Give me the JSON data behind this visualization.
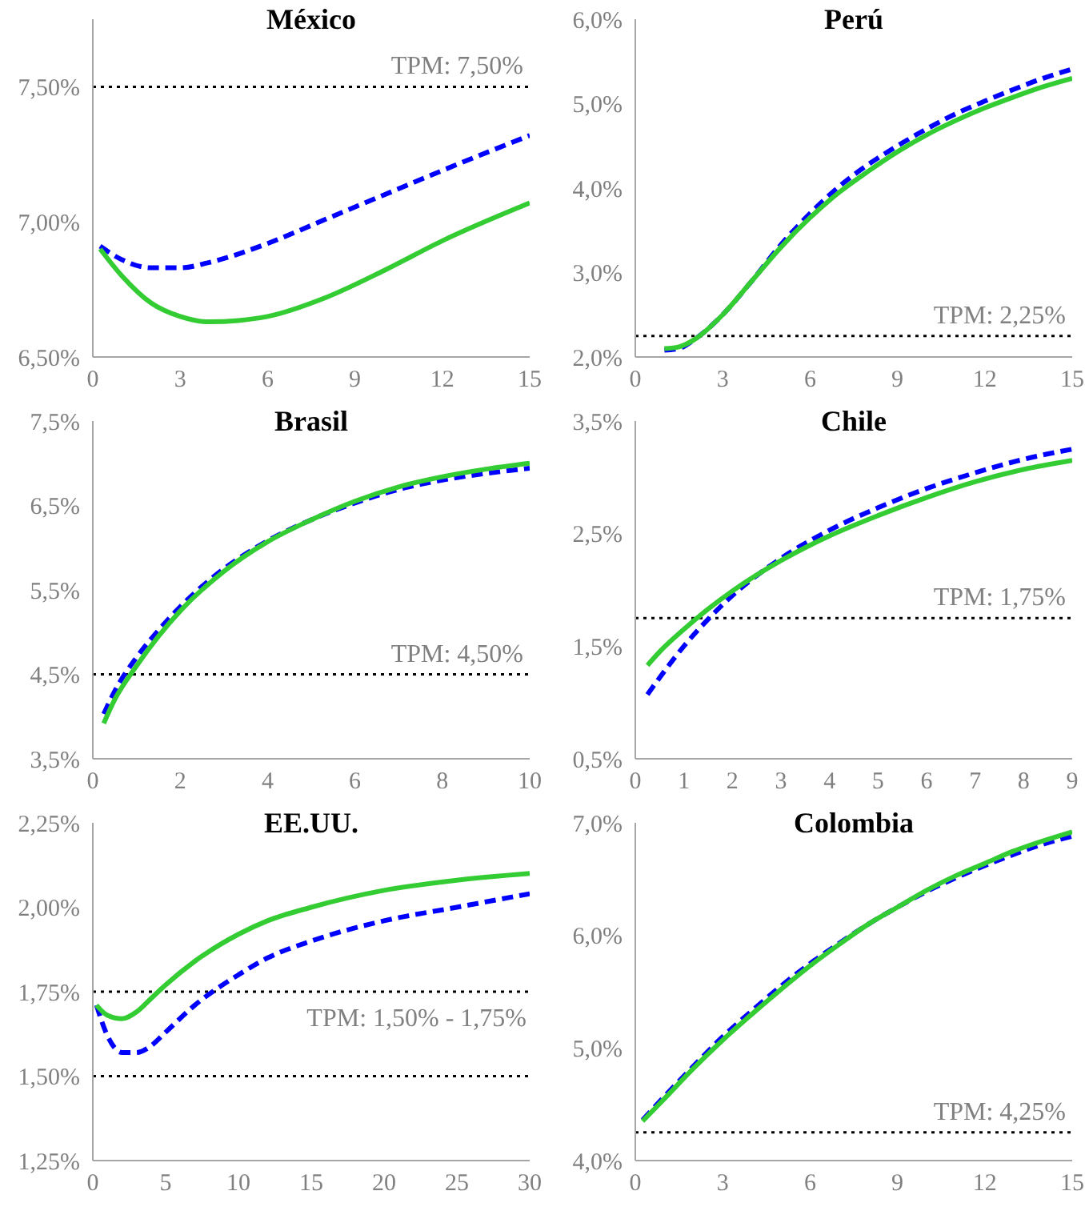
{
  "chart_data": [
    {
      "type": "line",
      "title": "México",
      "xlim": [
        0,
        15
      ],
      "xticks": [
        0,
        3,
        6,
        9,
        12,
        15
      ],
      "ylim": [
        6.5,
        7.75
      ],
      "yticks": [
        {
          "value": 6.5,
          "label": "6,50%"
        },
        {
          "value": 7,
          "label": "7,00%"
        },
        {
          "value": 7.5,
          "label": "7,50%"
        }
      ],
      "marker": "none",
      "ref_lines": [
        {
          "axis": "y",
          "value": 7.5,
          "label": "TPM: 7,50%",
          "color": "#000000",
          "line_style": "dotted"
        }
      ],
      "series": [
        {
          "color": "#0000ff",
          "line_style": "dashed",
          "x": [
            0.25,
            1,
            2,
            3,
            4,
            6,
            8,
            10,
            12,
            15
          ],
          "values": [
            6.91,
            6.86,
            6.83,
            6.83,
            6.85,
            6.92,
            7.01,
            7.1,
            7.19,
            7.32
          ]
        },
        {
          "color": "#33cc33",
          "line_style": "solid",
          "x": [
            0.25,
            1,
            2,
            3,
            4,
            5,
            6,
            8,
            10,
            12,
            15
          ],
          "values": [
            6.9,
            6.8,
            6.7,
            6.65,
            6.63,
            6.635,
            6.65,
            6.72,
            6.82,
            6.93,
            7.07
          ]
        }
      ]
    },
    {
      "type": "line",
      "title": "Perú",
      "xlim": [
        0,
        15
      ],
      "xticks": [
        0,
        3,
        6,
        9,
        12,
        15
      ],
      "ylim": [
        2,
        6
      ],
      "yticks": [
        {
          "value": 2,
          "label": "2,0%"
        },
        {
          "value": 3,
          "label": "3,0%"
        },
        {
          "value": 4,
          "label": "4,0%"
        },
        {
          "value": 5,
          "label": "5,0%"
        },
        {
          "value": 6,
          "label": "6,0%"
        }
      ],
      "marker": "none",
      "ref_lines": [
        {
          "axis": "y",
          "value": 2.25,
          "label": "TPM: 2,25%",
          "color": "#000000",
          "line_style": "dotted"
        }
      ],
      "series": [
        {
          "color": "#0000ff",
          "line_style": "dashed",
          "x": [
            1,
            1.5,
            2,
            3,
            4,
            5,
            6,
            7,
            8,
            9,
            10,
            11,
            12,
            13,
            14,
            15
          ],
          "values": [
            2.08,
            2.1,
            2.2,
            2.5,
            2.9,
            3.33,
            3.7,
            4.02,
            4.28,
            4.5,
            4.7,
            4.88,
            5.03,
            5.17,
            5.3,
            5.41
          ]
        },
        {
          "color": "#33cc33",
          "line_style": "solid",
          "x": [
            1,
            1.5,
            2,
            3,
            4,
            5,
            6,
            7,
            8,
            9,
            10,
            11,
            12,
            13,
            14,
            15
          ],
          "values": [
            2.1,
            2.12,
            2.2,
            2.5,
            2.9,
            3.3,
            3.65,
            3.95,
            4.2,
            4.43,
            4.63,
            4.8,
            4.95,
            5.08,
            5.2,
            5.3
          ]
        }
      ]
    },
    {
      "type": "line",
      "title": "Brasil",
      "xlim": [
        0,
        10
      ],
      "xticks": [
        0,
        2,
        4,
        6,
        8,
        10
      ],
      "ylim": [
        3.5,
        7.5
      ],
      "yticks": [
        {
          "value": 3.5,
          "label": "3,5%"
        },
        {
          "value": 4.5,
          "label": "4,5%"
        },
        {
          "value": 5.5,
          "label": "5,5%"
        },
        {
          "value": 6.5,
          "label": "6,5%"
        },
        {
          "value": 7.5,
          "label": "7,5%"
        }
      ],
      "marker": "none",
      "ref_lines": [
        {
          "axis": "y",
          "value": 4.5,
          "label": "TPM: 4,50%",
          "color": "#000000",
          "line_style": "dotted"
        }
      ],
      "series": [
        {
          "color": "#0000ff",
          "line_style": "dashed",
          "x": [
            0.25,
            0.5,
            1,
            1.5,
            2,
            3,
            4,
            5,
            6,
            7,
            8,
            9,
            10
          ],
          "values": [
            4.03,
            4.3,
            4.7,
            5.02,
            5.3,
            5.75,
            6.08,
            6.33,
            6.53,
            6.69,
            6.8,
            6.88,
            6.94
          ]
        },
        {
          "color": "#33cc33",
          "line_style": "solid",
          "x": [
            0.25,
            0.5,
            1,
            1.5,
            2,
            3,
            4,
            5,
            6,
            7,
            8,
            9,
            10
          ],
          "values": [
            3.92,
            4.2,
            4.6,
            4.95,
            5.25,
            5.72,
            6.07,
            6.33,
            6.55,
            6.72,
            6.84,
            6.93,
            7.0
          ]
        }
      ]
    },
    {
      "type": "line",
      "title": "Chile",
      "xlim": [
        0,
        9
      ],
      "xticks": [
        0,
        1,
        2,
        3,
        4,
        5,
        6,
        7,
        8,
        9
      ],
      "ylim": [
        0.5,
        3.5
      ],
      "yticks": [
        {
          "value": 0.5,
          "label": "0,5%"
        },
        {
          "value": 1.5,
          "label": "1,5%"
        },
        {
          "value": 2.5,
          "label": "2,5%"
        },
        {
          "value": 3.5,
          "label": "3,5%"
        }
      ],
      "marker": "none",
      "ref_lines": [
        {
          "axis": "y",
          "value": 1.75,
          "label": "TPM: 1,75%",
          "color": "#000000",
          "line_style": "dotted"
        }
      ],
      "series": [
        {
          "color": "#0000ff",
          "line_style": "dashed",
          "x": [
            0.25,
            0.5,
            1,
            1.5,
            2,
            3,
            4,
            5,
            6,
            7,
            8,
            9
          ],
          "values": [
            1.07,
            1.22,
            1.5,
            1.74,
            1.95,
            2.28,
            2.53,
            2.73,
            2.9,
            3.04,
            3.16,
            3.25
          ]
        },
        {
          "color": "#33cc33",
          "line_style": "solid",
          "x": [
            0.25,
            0.5,
            1,
            1.5,
            2,
            3,
            4,
            5,
            6,
            7,
            8,
            9
          ],
          "values": [
            1.33,
            1.45,
            1.65,
            1.83,
            1.99,
            2.26,
            2.48,
            2.66,
            2.82,
            2.96,
            3.07,
            3.15
          ]
        }
      ]
    },
    {
      "type": "line",
      "title": "EE.UU.",
      "xlim": [
        0,
        30
      ],
      "xticks": [
        0,
        5,
        10,
        15,
        20,
        25,
        30
      ],
      "ylim": [
        1.25,
        2.25
      ],
      "yticks": [
        {
          "value": 1.25,
          "label": "1,25%"
        },
        {
          "value": 1.5,
          "label": "1,50%"
        },
        {
          "value": 1.75,
          "label": "1,75%"
        },
        {
          "value": 2,
          "label": "2,00%"
        },
        {
          "value": 2.25,
          "label": "2,25%"
        }
      ],
      "marker": "none",
      "ref_lines": [
        {
          "axis": "y",
          "value": 1.5,
          "color": "#000000",
          "line_style": "dotted"
        },
        {
          "axis": "y",
          "value": 1.75,
          "color": "#000000",
          "line_style": "dotted"
        }
      ],
      "annotations": [
        "TPM: 1,50% - 1,75%"
      ],
      "series": [
        {
          "color": "#0000ff",
          "line_style": "dashed",
          "x": [
            0.25,
            1,
            2,
            3,
            4,
            5,
            7,
            10,
            12,
            15,
            20,
            25,
            30
          ],
          "values": [
            1.71,
            1.62,
            1.57,
            1.57,
            1.59,
            1.63,
            1.71,
            1.8,
            1.85,
            1.9,
            1.96,
            2.0,
            2.04
          ]
        },
        {
          "color": "#33cc33",
          "line_style": "solid",
          "x": [
            0.25,
            1,
            2,
            3,
            4,
            5,
            7,
            10,
            12,
            15,
            20,
            25,
            30
          ],
          "values": [
            1.71,
            1.68,
            1.67,
            1.69,
            1.73,
            1.77,
            1.84,
            1.92,
            1.96,
            2.0,
            2.05,
            2.08,
            2.1
          ]
        }
      ]
    },
    {
      "type": "line",
      "title": "Colombia",
      "xlim": [
        0,
        15
      ],
      "xticks": [
        0,
        3,
        6,
        9,
        12,
        15
      ],
      "ylim": [
        4,
        7
      ],
      "yticks": [
        {
          "value": 4,
          "label": "4,0%"
        },
        {
          "value": 5,
          "label": "5,0%"
        },
        {
          "value": 6,
          "label": "6,0%"
        },
        {
          "value": 7,
          "label": "7,0%"
        }
      ],
      "marker": "none",
      "ref_lines": [
        {
          "axis": "y",
          "value": 4.25,
          "label": "TPM: 4,25%",
          "color": "#000000",
          "line_style": "dotted"
        }
      ],
      "series": [
        {
          "color": "#0000ff",
          "line_style": "dashed",
          "x": [
            0.25,
            1,
            2,
            3,
            4,
            5,
            6,
            7,
            8,
            9,
            10,
            11,
            12,
            13,
            14,
            15
          ],
          "values": [
            4.36,
            4.57,
            4.84,
            5.1,
            5.33,
            5.55,
            5.75,
            5.93,
            6.1,
            6.25,
            6.39,
            6.51,
            6.62,
            6.72,
            6.81,
            6.88
          ]
        },
        {
          "color": "#33cc33",
          "line_style": "solid",
          "x": [
            0.25,
            1,
            2,
            3,
            4,
            5,
            6,
            7,
            8,
            9,
            10,
            11,
            12,
            13,
            14,
            15
          ],
          "values": [
            4.35,
            4.55,
            4.82,
            5.07,
            5.3,
            5.52,
            5.73,
            5.92,
            6.1,
            6.25,
            6.4,
            6.53,
            6.64,
            6.75,
            6.84,
            6.92
          ]
        }
      ]
    }
  ]
}
